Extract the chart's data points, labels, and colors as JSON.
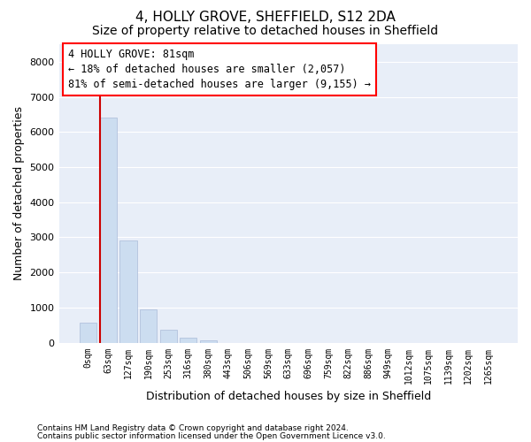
{
  "title": "4, HOLLY GROVE, SHEFFIELD, S12 2DA",
  "subtitle": "Size of property relative to detached houses in Sheffield",
  "xlabel": "Distribution of detached houses by size in Sheffield",
  "ylabel": "Number of detached properties",
  "footnote1": "Contains HM Land Registry data © Crown copyright and database right 2024.",
  "footnote2": "Contains public sector information licensed under the Open Government Licence v3.0.",
  "bar_labels": [
    "0sqm",
    "63sqm",
    "127sqm",
    "190sqm",
    "253sqm",
    "316sqm",
    "380sqm",
    "443sqm",
    "506sqm",
    "569sqm",
    "633sqm",
    "696sqm",
    "759sqm",
    "822sqm",
    "886sqm",
    "949sqm",
    "1012sqm",
    "1075sqm",
    "1139sqm",
    "1202sqm",
    "1265sqm"
  ],
  "bar_values": [
    580,
    6400,
    2900,
    960,
    360,
    140,
    80,
    0,
    0,
    0,
    0,
    0,
    0,
    0,
    0,
    0,
    0,
    0,
    0,
    0,
    0
  ],
  "bar_color": "#ccddf0",
  "bar_edgecolor": "#aabbd8",
  "vline_x_index": 1,
  "annotation_text_line1": "4 HOLLY GROVE: 81sqm",
  "annotation_text_line2": "← 18% of detached houses are smaller (2,057)",
  "annotation_text_line3": "81% of semi-detached houses are larger (9,155) →",
  "vline_color": "#cc0000",
  "ylim": [
    0,
    8500
  ],
  "yticks": [
    0,
    1000,
    2000,
    3000,
    4000,
    5000,
    6000,
    7000,
    8000
  ],
  "bg_color": "#e8eef8",
  "grid_color": "#ffffff",
  "title_fontsize": 11,
  "subtitle_fontsize": 10,
  "ylabel_fontsize": 9,
  "xlabel_fontsize": 9,
  "tick_fontsize": 7,
  "annotation_fontsize": 8.5
}
